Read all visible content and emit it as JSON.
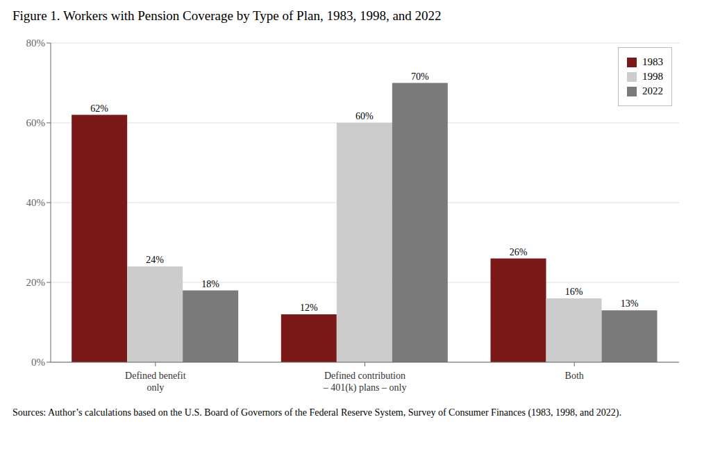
{
  "chart_data": {
    "type": "bar",
    "title": "Figure 1. Workers with Pension Coverage by Type of Plan, 1983, 1998, and 2022",
    "annotations": [
      "Sources: Author’s calculations based on the U.S. Board of Governors of the Federal Reserve System, Survey of Consumer Finances (1983, 1998, and 2022)."
    ],
    "categories": [
      "Defined benefit\nonly",
      "Defined contribution\n– 401(k) plans – only",
      "Both"
    ],
    "series": [
      {
        "name": "1983",
        "color": "#7B1818",
        "values": [
          62,
          12,
          26
        ],
        "value_labels": [
          "62%",
          "12%",
          "26%"
        ]
      },
      {
        "name": "1998",
        "color": "#CCCCCC",
        "values": [
          24,
          60,
          16
        ],
        "value_labels": [
          "24%",
          "60%",
          "16%"
        ]
      },
      {
        "name": "2022",
        "color": "#7A7A7A",
        "values": [
          18,
          70,
          13
        ],
        "value_labels": [
          "18%",
          "70%",
          "13%"
        ]
      }
    ],
    "ylim": [
      0,
      80
    ],
    "yticks": [
      {
        "value": 0,
        "label": "0%"
      },
      {
        "value": 20,
        "label": "20%"
      },
      {
        "value": 40,
        "label": "40%"
      },
      {
        "value": 60,
        "label": "60%"
      },
      {
        "value": 80,
        "label": "80%"
      }
    ],
    "grid": true,
    "legend": "upper right",
    "data_labels": true
  }
}
